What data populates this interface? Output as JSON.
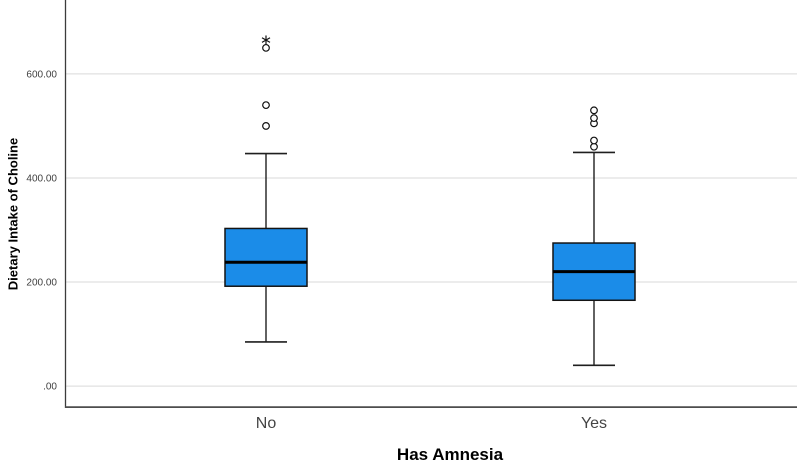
{
  "colors": {
    "background": "#ffffff",
    "box_fill": "#1b8ce8",
    "box_border": "#141414",
    "median_line": "#000000",
    "whisker": "#1f1f1f",
    "gridline": "#d9d9d9",
    "y_axis_line": "#3c3c3c",
    "x_axis_line": "#4d4d4d",
    "tick_label": "#404040",
    "category_label": "#444444",
    "axis_title": "#000000",
    "outlier_stroke": "#111111",
    "outlier_fill": "#ffffff"
  },
  "chart_data": {
    "type": "boxplot",
    "xlabel": "Has Amnesia",
    "ylabel": "Dietary Intake of Choline",
    "categories": [
      "No",
      "Yes"
    ],
    "y_ticks": [
      {
        "label": ".00",
        "value": 0
      },
      {
        "label": "200.00",
        "value": 200
      },
      {
        "label": "400.00",
        "value": 400
      },
      {
        "label": "600.00",
        "value": 600
      }
    ],
    "ylim": [
      -42,
      742
    ],
    "grid": "horizontal-only",
    "legend": "none",
    "series": [
      {
        "category": "No",
        "whisker_low": 85,
        "q1": 192,
        "median": 238,
        "q3": 303,
        "whisker_high": 447,
        "outliers": [
          500,
          540,
          650
        ],
        "extreme_outliers": [
          665
        ]
      },
      {
        "category": "Yes",
        "whisker_low": 40,
        "q1": 165,
        "median": 220,
        "q3": 275,
        "whisker_high": 449,
        "outliers": [
          460,
          472,
          505,
          515,
          530
        ],
        "extreme_outliers": []
      }
    ]
  }
}
